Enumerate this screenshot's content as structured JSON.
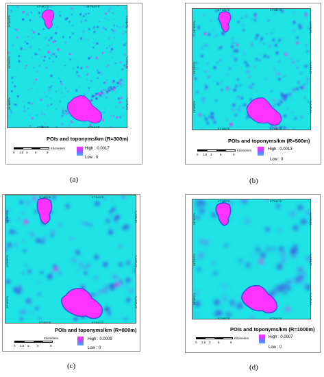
{
  "panels": [
    {
      "id": "a",
      "title": "POIs and toponyms/km (R=300m)",
      "legend_high": "High : 0.0017",
      "legend_low": "Low : 0",
      "caption": "(a)"
    },
    {
      "id": "b",
      "title": "POIs and toponyms/km (R=500m)",
      "legend_high": "High : 0.0013",
      "legend_low": "Low : 0",
      "caption": "(b)"
    },
    {
      "id": "c",
      "title": "POIs and toponyms/km (R=800m)",
      "legend_high": "High : 0.0009",
      "legend_low": "Low : 0",
      "caption": "(c)"
    },
    {
      "id": "d",
      "title": "POIs and toponyms/km (R=1000m)",
      "legend_high": "High : 0.0007",
      "legend_low": "Low : 0",
      "caption": "(d)"
    }
  ],
  "map_labels": {
    "lon_left": "97°48'0\"E",
    "lon_right": "97°54'0\"E",
    "lat_top": "24°30'0\"N",
    "lat_mid": "24°24'0\"N",
    "lat_bottom": "24°18'0\"N"
  },
  "scale": {
    "unit": "Kilometers",
    "ticks": [
      "0",
      "1.5",
      "3",
      "6",
      "9"
    ]
  },
  "colors": {
    "background_low": "#1fe3e5",
    "medium": "#3a6fe6",
    "high": "#ff33ff"
  }
}
